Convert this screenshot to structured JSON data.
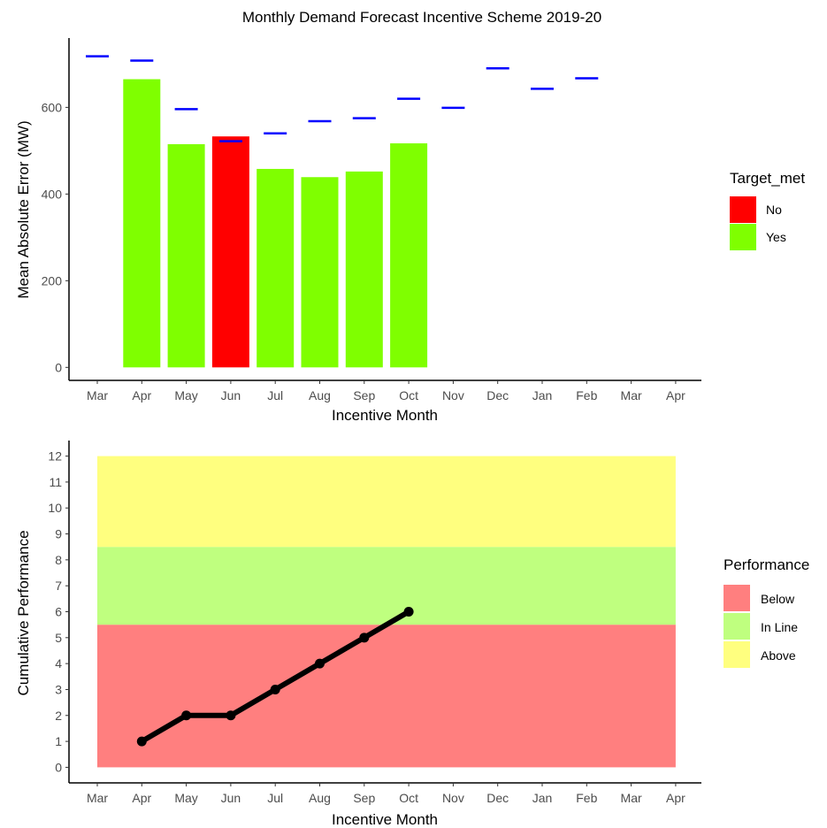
{
  "chart_data": [
    {
      "type": "bar",
      "title": "Monthly Demand Forecast Incentive Scheme 2019-20",
      "xlabel": "Incentive Month",
      "ylabel": "Mean Absolute Error (MW)",
      "x_ticks": [
        "Mar",
        "Apr",
        "May",
        "Jun",
        "Jul",
        "Aug",
        "Sep",
        "Oct",
        "Nov",
        "Dec",
        "Jan",
        "Feb",
        "Mar",
        "Apr"
      ],
      "y_ticks": [
        0,
        200,
        400,
        600
      ],
      "ylim": [
        -30,
        760
      ],
      "grid": false,
      "bars": [
        {
          "month": "Apr",
          "value": 665,
          "target_met": "Yes"
        },
        {
          "month": "May",
          "value": 515,
          "target_met": "Yes"
        },
        {
          "month": "Jun",
          "value": 533,
          "target_met": "No"
        },
        {
          "month": "Jul",
          "value": 458,
          "target_met": "Yes"
        },
        {
          "month": "Aug",
          "value": 439,
          "target_met": "Yes"
        },
        {
          "month": "Sep",
          "value": 452,
          "target_met": "Yes"
        },
        {
          "month": "Oct",
          "value": 517,
          "target_met": "Yes"
        }
      ],
      "targets": [
        {
          "month": "Apr",
          "value": 708
        },
        {
          "month": "May",
          "value": 596
        },
        {
          "month": "Jun",
          "value": 522
        },
        {
          "month": "Jul",
          "value": 540
        },
        {
          "month": "Aug",
          "value": 568
        },
        {
          "month": "Sep",
          "value": 575
        },
        {
          "month": "Oct",
          "value": 620
        },
        {
          "month": "Nov",
          "value": 599
        },
        {
          "month": "Dec",
          "value": 690
        },
        {
          "month": "Jan",
          "value": 643
        },
        {
          "month": "Feb",
          "value": 667
        },
        {
          "month": "Mar",
          "value": 718
        }
      ],
      "target_color": "#0000ff",
      "legend": {
        "title": "Target_met",
        "position": "right",
        "items": [
          {
            "label": "No",
            "color": "#ff0000"
          },
          {
            "label": "Yes",
            "color": "#7fff00"
          }
        ]
      }
    },
    {
      "type": "line",
      "title": "",
      "xlabel": "Incentive Month",
      "ylabel": "Cumulative Performance",
      "x_ticks": [
        "Mar",
        "Apr",
        "May",
        "Jun",
        "Jul",
        "Aug",
        "Sep",
        "Oct",
        "Nov",
        "Dec",
        "Jan",
        "Feb",
        "Mar",
        "Apr"
      ],
      "y_ticks": [
        0,
        1,
        2,
        3,
        4,
        5,
        6,
        7,
        8,
        9,
        10,
        11,
        12
      ],
      "ylim": [
        -0.6,
        12.6
      ],
      "grid": false,
      "bands": [
        {
          "label": "Below",
          "from": 0,
          "to": 5.5,
          "color": "#ff7f7f"
        },
        {
          "label": "In Line",
          "from": 5.5,
          "to": 8.5,
          "color": "#bfff7f"
        },
        {
          "label": "Above",
          "from": 8.5,
          "to": 12,
          "color": "#ffff7f"
        }
      ],
      "series": [
        {
          "x": [
            "Apr",
            "May",
            "Jun",
            "Jul",
            "Aug",
            "Sep",
            "Oct"
          ],
          "values": [
            1,
            2,
            2,
            3,
            4,
            5,
            6
          ],
          "color": "#000000"
        }
      ],
      "legend": {
        "title": "Performance",
        "position": "right",
        "items": [
          {
            "label": "Below",
            "color": "#ff7f7f"
          },
          {
            "label": "In Line",
            "color": "#bfff7f"
          },
          {
            "label": "Above",
            "color": "#ffff7f"
          }
        ]
      }
    }
  ]
}
